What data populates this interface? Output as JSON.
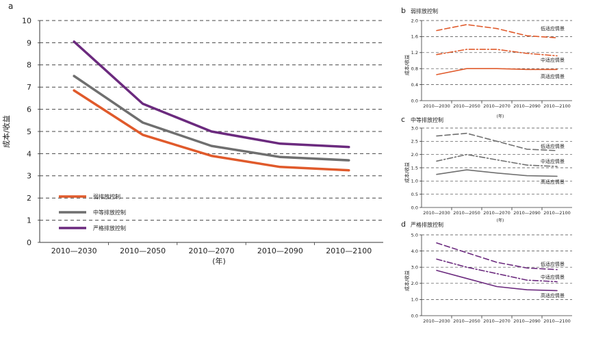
{
  "chart_data": [
    {
      "panel": "a",
      "type": "line",
      "ylabel": "成本/收益",
      "xlabel": "(年)",
      "categories": [
        "2010—2030",
        "2010—2050",
        "2010—2070",
        "2010—2090",
        "2010—2100"
      ],
      "ylim": [
        0,
        10
      ],
      "yticks": [
        0,
        1,
        2,
        3,
        4,
        5,
        6,
        7,
        8,
        9,
        10
      ],
      "grid": true,
      "legend_placement": "bottom-left",
      "series": [
        {
          "name": "弱排放控制",
          "color": "#e05a2b",
          "values": [
            6.85,
            4.85,
            3.9,
            3.4,
            3.25
          ]
        },
        {
          "name": "中等排放控制",
          "color": "#6f6f6f",
          "values": [
            7.5,
            5.4,
            4.35,
            3.85,
            3.7
          ]
        },
        {
          "name": "严格排放控制",
          "color": "#6b2a7e",
          "values": [
            9.05,
            6.25,
            5.0,
            4.45,
            4.3
          ]
        }
      ]
    },
    {
      "panel": "b",
      "type": "line",
      "title": "弱排放控制",
      "ylabel": "成本/收益",
      "xlabel": "(年)",
      "categories": [
        "2010—2030",
        "2010—2050",
        "2010—2070",
        "2010—2090",
        "2010—2100"
      ],
      "ylim": [
        0,
        2.0
      ],
      "yticks": [
        "0.0",
        "0.4",
        "0.8",
        "1.2",
        "1.6",
        "2.0"
      ],
      "grid": true,
      "color": "#e05a2b",
      "series": [
        {
          "name": "低适应情景",
          "style": "dashed",
          "values": [
            1.75,
            1.9,
            1.8,
            1.62,
            1.57
          ]
        },
        {
          "name": "中适应情景",
          "style": "dashdot",
          "values": [
            1.15,
            1.28,
            1.28,
            1.18,
            1.12
          ]
        },
        {
          "name": "高适应情景",
          "style": "solid",
          "values": [
            0.65,
            0.8,
            0.8,
            0.78,
            0.78
          ]
        }
      ]
    },
    {
      "panel": "c",
      "type": "line",
      "title": "中等排放控制",
      "ylabel": "成本/收益",
      "xlabel": "(年)",
      "categories": [
        "2010—2030",
        "2010—2050",
        "2010—2070",
        "2010—2090",
        "2010—2100"
      ],
      "ylim": [
        0,
        3.0
      ],
      "yticks": [
        "0.0",
        "0.5",
        "1.0",
        "1.5",
        "2.0",
        "2.5",
        "3.0"
      ],
      "grid": true,
      "color": "#6f6f6f",
      "series": [
        {
          "name": "低适应情景",
          "style": "dashed",
          "values": [
            2.7,
            2.8,
            2.5,
            2.2,
            2.15
          ]
        },
        {
          "name": "中适应情景",
          "style": "dashdot",
          "values": [
            1.75,
            2.0,
            1.8,
            1.6,
            1.55
          ]
        },
        {
          "name": "高适应情景",
          "style": "solid",
          "values": [
            1.25,
            1.42,
            1.3,
            1.2,
            1.18
          ]
        }
      ]
    },
    {
      "panel": "d",
      "type": "line",
      "title": "严格排放控制",
      "ylabel": "成本/收益",
      "xlabel": "(年)",
      "categories": [
        "2010—2030",
        "2010—2050",
        "2010—2070",
        "2010—2090",
        "2010—2100"
      ],
      "ylim": [
        0,
        5.0
      ],
      "yticks": [
        "0.0",
        "1.0",
        "2.0",
        "3.0",
        "4.0",
        "5.0"
      ],
      "grid": true,
      "color": "#6b2a7e",
      "series": [
        {
          "name": "低适应情景",
          "style": "dashed",
          "values": [
            4.5,
            3.9,
            3.3,
            2.95,
            2.85
          ]
        },
        {
          "name": "中适应情景",
          "style": "dashdot",
          "values": [
            3.5,
            3.0,
            2.6,
            2.2,
            2.1
          ]
        },
        {
          "name": "高适应情景",
          "style": "solid",
          "values": [
            2.8,
            2.3,
            1.8,
            1.6,
            1.55
          ]
        }
      ]
    }
  ]
}
